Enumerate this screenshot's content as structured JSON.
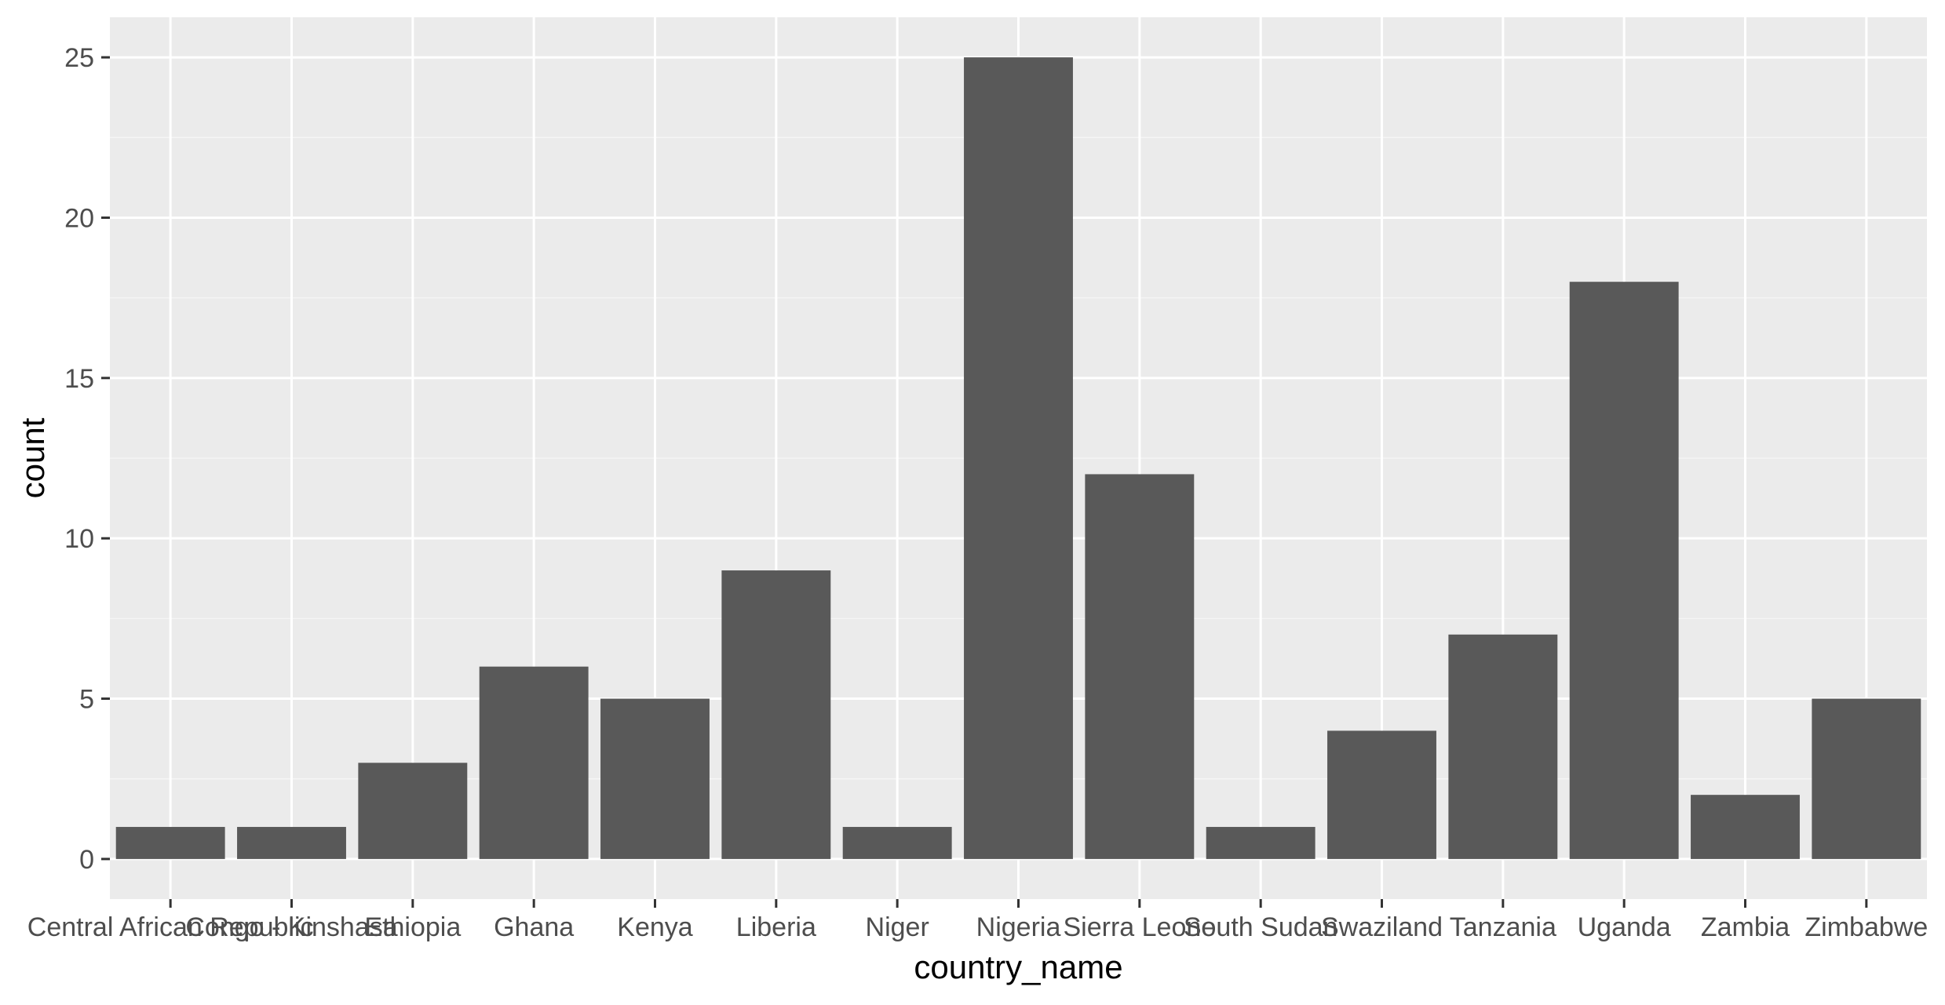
{
  "chart_data": {
    "type": "bar",
    "xlabel": "country_name",
    "ylabel": "count",
    "categories": [
      "Central African Republic",
      "Congo - Kinshasa",
      "Ethiopia",
      "Ghana",
      "Kenya",
      "Liberia",
      "Niger",
      "Nigeria",
      "Sierra Leone",
      "South Sudan",
      "Swaziland",
      "Tanzania",
      "Uganda",
      "Zambia",
      "Zimbabwe"
    ],
    "values": [
      1,
      1,
      3,
      6,
      5,
      9,
      1,
      25,
      12,
      1,
      4,
      7,
      18,
      2,
      5
    ],
    "yticks": [
      0,
      5,
      10,
      15,
      20,
      25
    ],
    "ylim": [
      -1.25,
      26.25
    ],
    "grid": true,
    "colors": {
      "panel_background": "#ebebeb",
      "bar_fill": "#595959",
      "grid_major": "#ffffff",
      "grid_minor": "#f5f5f5",
      "tick_text": "#4d4d4d",
      "tick_mark": "#333333"
    }
  }
}
